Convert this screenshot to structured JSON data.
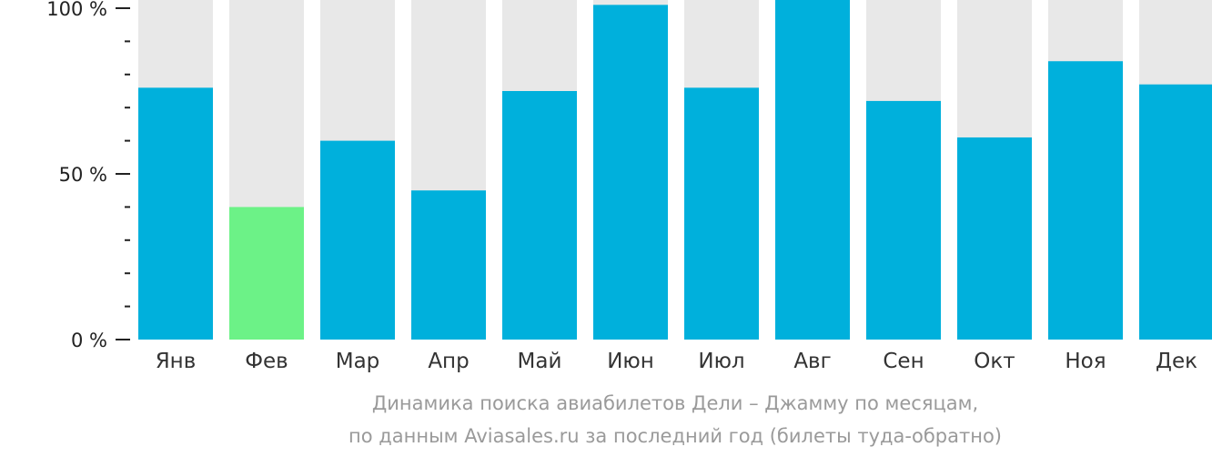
{
  "chart_data": {
    "type": "bar",
    "categories": [
      "Янв",
      "Фев",
      "Мар",
      "Апр",
      "Май",
      "Июн",
      "Июл",
      "Авг",
      "Сен",
      "Окт",
      "Ноя",
      "Дек"
    ],
    "values": [
      76,
      40,
      60,
      45,
      75,
      101,
      76,
      104,
      72,
      61,
      84,
      77
    ],
    "highlight_index": 1,
    "ylim": [
      0,
      100
    ],
    "y_ticks": [
      "0 %",
      "50 %",
      "100 %"
    ],
    "grid": false,
    "colors": {
      "bar": "#00b0dc",
      "highlight": "#6cf287",
      "background_bar": "#e8e8e8",
      "axis": "#222222"
    },
    "caption_line1": "Динамика поиска авиабилетов Дели – Джамму по месяцам,",
    "caption_line2": "по данным Aviasales.ru за последний год (билеты туда-обратно)"
  }
}
